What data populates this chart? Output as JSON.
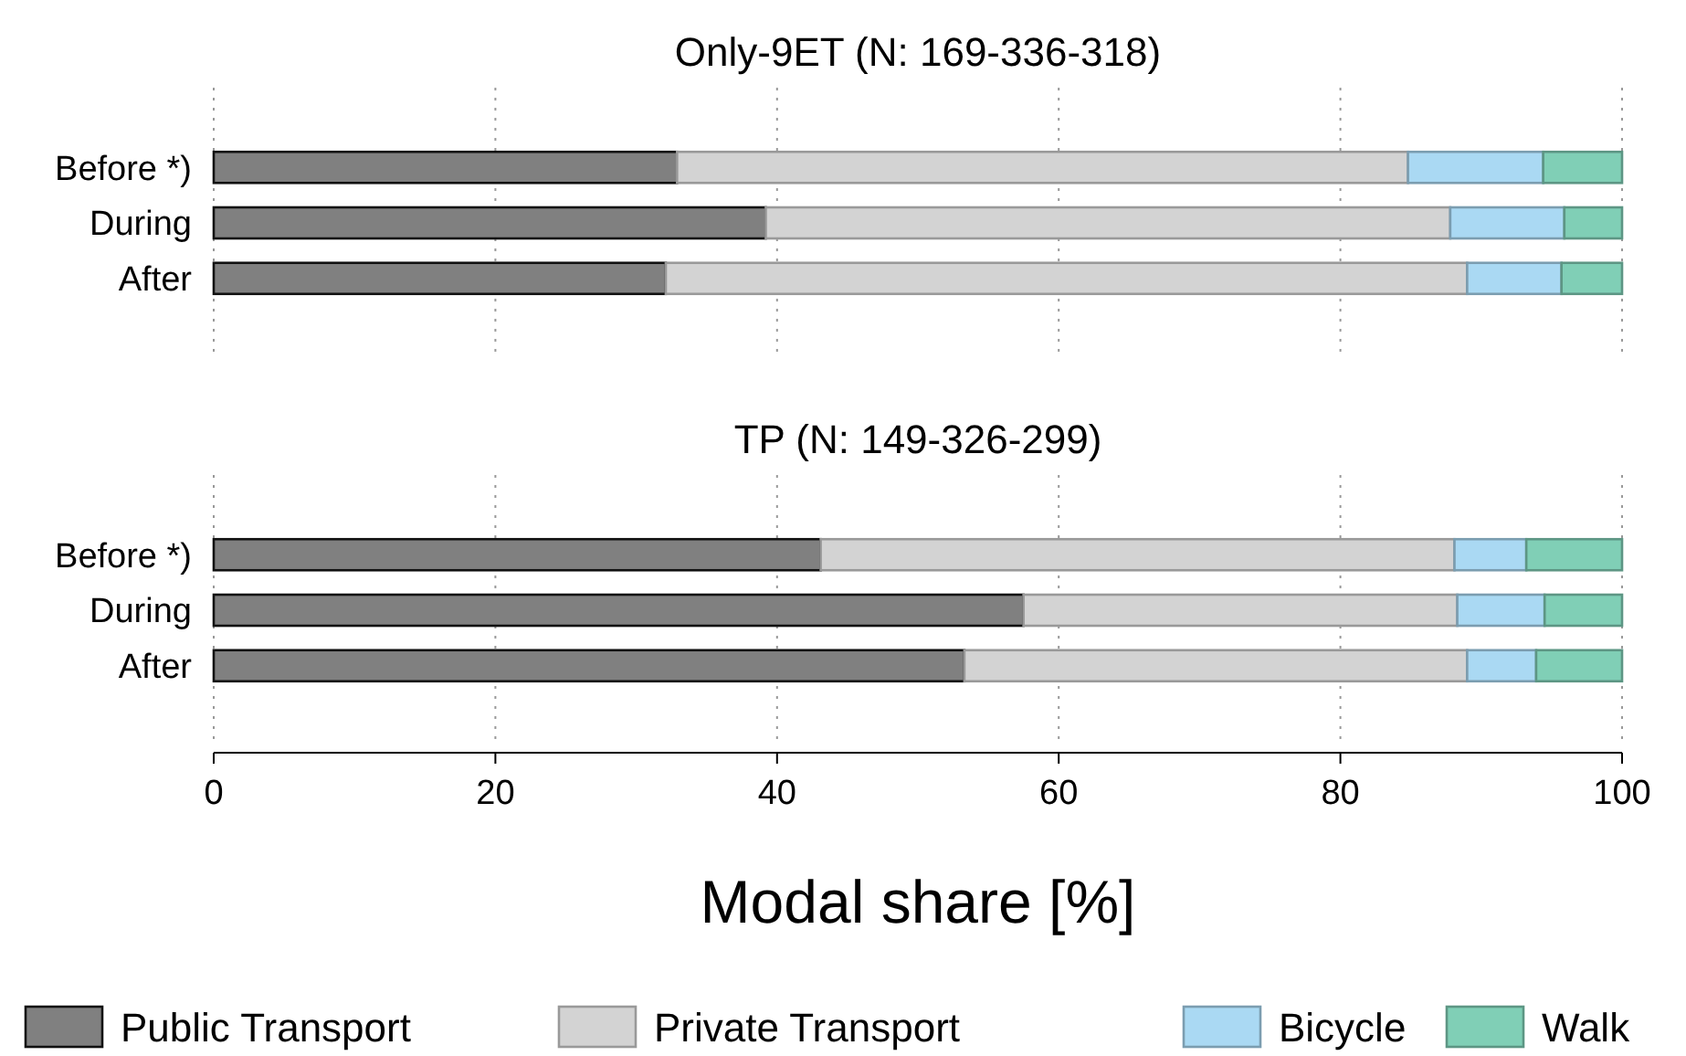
{
  "chart_data": [
    {
      "type": "bar",
      "orientation": "horizontal",
      "stacked": true,
      "title": "Only-9ET (N: 169-336-318)",
      "categories": [
        "Before *)",
        "During",
        "After"
      ],
      "xlim": [
        0,
        100
      ],
      "xticks": [
        0,
        20,
        40,
        60,
        80,
        100
      ],
      "grid": "x",
      "tick_labels": "y",
      "series": [
        {
          "color": "#808080",
          "values": [
            32.9,
            39.2,
            32.1
          ]
        },
        {
          "color": "#d3d3d3",
          "values": [
            51.9,
            48.6,
            56.9
          ]
        },
        {
          "color": "#aad9f3",
          "values": [
            9.6,
            8.1,
            6.7
          ]
        },
        {
          "color": "#80cfb6",
          "values": [
            5.6,
            4.1,
            4.3
          ]
        }
      ]
    },
    {
      "type": "bar",
      "orientation": "horizontal",
      "stacked": true,
      "title": "TP (N: 149-326-299)",
      "categories": [
        "Before *)",
        "During",
        "After"
      ],
      "xlim": [
        0,
        100
      ],
      "xticks": [
        0,
        20,
        40,
        60,
        80,
        100
      ],
      "grid": "x",
      "xlabel": "Modal share [%]",
      "legend": "bottom",
      "series": [
        {
          "name": "Public Transport",
          "color": "#808080",
          "values": [
            43.1,
            57.5,
            53.3
          ]
        },
        {
          "name": "Private Transport",
          "color": "#d3d3d3",
          "values": [
            45.0,
            30.8,
            35.7
          ]
        },
        {
          "name": "Bicycle",
          "color": "#aad9f3",
          "values": [
            5.1,
            6.2,
            4.9
          ]
        },
        {
          "name": "Walk",
          "color": "#80cfb6",
          "values": [
            6.8,
            5.5,
            6.1
          ]
        }
      ]
    }
  ]
}
